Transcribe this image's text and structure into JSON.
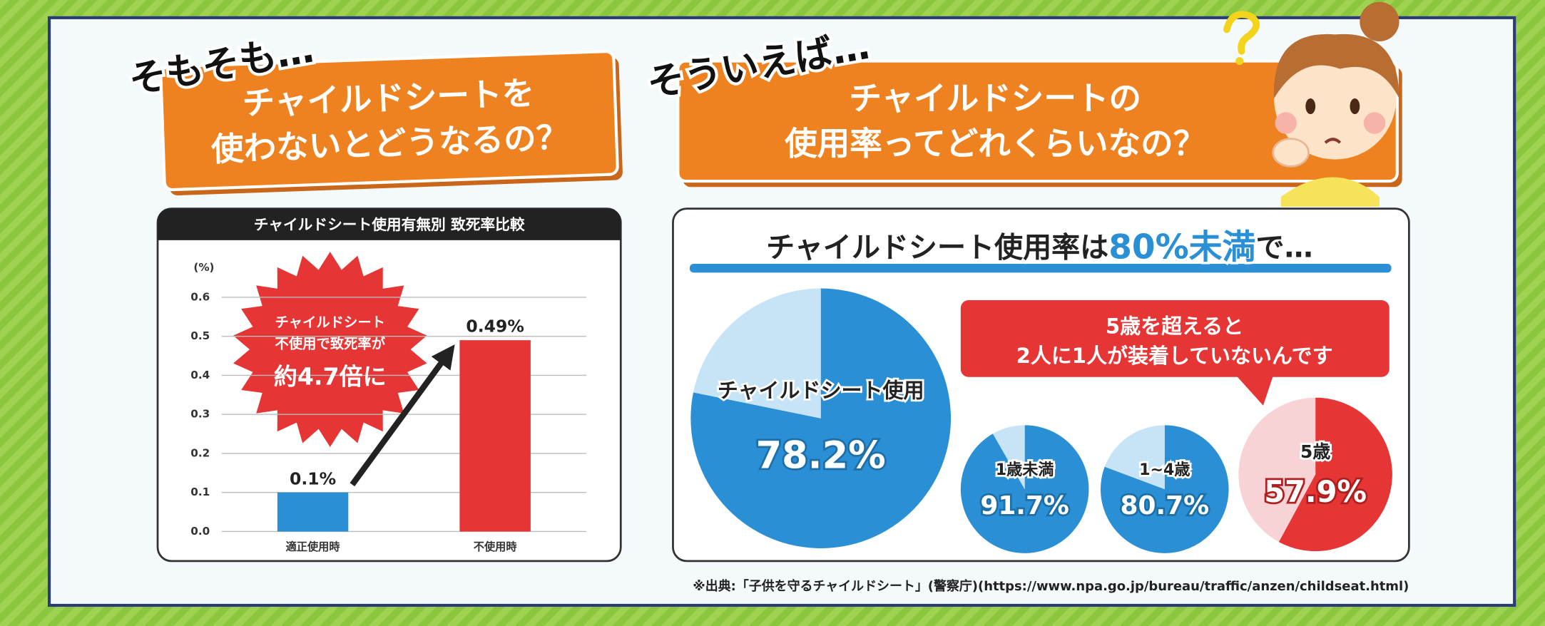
{
  "left_question": {
    "lead": "そもそも…",
    "lines": [
      "チャイルドシートを",
      "使わないとどうなるの？"
    ]
  },
  "right_question": {
    "lead": "そういえば…",
    "lines": [
      "チャイルドシートの",
      "使用率ってどれくらいなの？"
    ]
  },
  "usage_title_parts": [
    "チャイルドシート使用率は",
    "80%未満",
    "で…"
  ],
  "callout": {
    "lines": [
      "5歳を超えると",
      "2人に1人が装着していないんです"
    ]
  },
  "source": "※出典:「子供を守るチャイルドシート」(警察庁)(https://www.npa.go.jp/bureau/traffic/anzen/childseat.html)",
  "chart_data": [
    {
      "type": "bar",
      "title": "チャイルドシート使用有無別 致死率比較",
      "y_label": "(%)",
      "categories": [
        "適正使用時",
        "不使用時"
      ],
      "values": [
        0.1,
        0.49
      ],
      "value_labels": [
        "0.1%",
        "0.49%"
      ],
      "colors": [
        "#2a8fd4",
        "#e53535"
      ],
      "ylim": [
        0,
        0.6
      ],
      "yticks": [
        {
          "value": 0,
          "label": "0.0"
        },
        0.1,
        0.2,
        0.3,
        0.4,
        0.5,
        0.6
      ],
      "grid": true,
      "annotation": [
        "チャイルドシート",
        "不使用で致死率が",
        "約4.7倍に"
      ]
    },
    {
      "type": "pie",
      "categories": [
        "チャイルドシート使用",
        null
      ],
      "values": [
        78.2,
        21.8
      ],
      "value_labels": [
        "78.2%",
        null
      ],
      "colors": [
        "#2a8fd4",
        "#c7e4f7"
      ]
    },
    {
      "type": "pie",
      "categories": [
        "1歳未満",
        null
      ],
      "values": [
        91.7,
        8.3
      ],
      "value_labels": [
        "91.7%",
        null
      ],
      "colors": [
        "#2a8fd4",
        "#c7e4f7"
      ]
    },
    {
      "type": "pie",
      "categories": [
        "1~4歳",
        null
      ],
      "values": [
        80.7,
        19.3
      ],
      "value_labels": [
        "80.7%",
        null
      ],
      "colors": [
        "#2a8fd4",
        "#c7e4f7"
      ]
    },
    {
      "type": "pie",
      "categories": [
        "5歳",
        null
      ],
      "values": [
        57.9,
        42.1
      ],
      "value_labels": [
        "57.9%",
        null
      ],
      "colors": [
        "#e53535",
        "#f8d3d6"
      ]
    }
  ]
}
